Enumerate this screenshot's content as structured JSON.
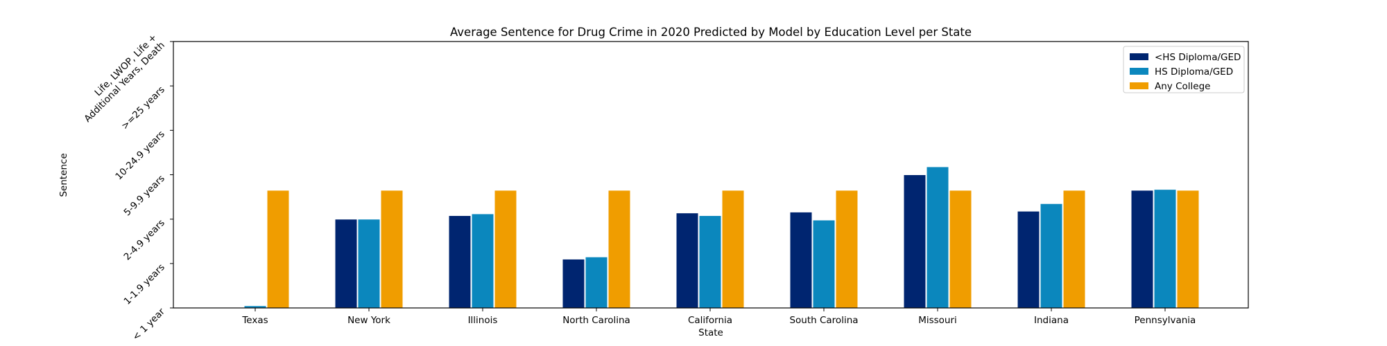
{
  "chart_data": {
    "type": "bar",
    "title": "Average Sentence for Drug Crime in 2020 Predicted by Model by Education Level per State",
    "xlabel": "State",
    "ylabel": "Sentence",
    "categories": [
      "Texas",
      "New York",
      "Illinois",
      "North Carolina",
      "California",
      "South Carolina",
      "Missouri",
      "Indiana",
      "Pennsylvania"
    ],
    "y_ticks": [
      "< 1 year",
      "1-1.9 years",
      "2-4.9 years",
      "5-9.9 years",
      "10-24.9 years",
      ">=25 years",
      "Life, LWOP, Life +\nAdditional Years, Death"
    ],
    "ylim": [
      0,
      6
    ],
    "grid": false,
    "legend_position": "top-right",
    "series": [
      {
        "name": "<HS Diploma/GED",
        "color": "#002570",
        "values": [
          0.01,
          2.0,
          2.08,
          1.1,
          2.14,
          2.16,
          3.0,
          2.18,
          2.65
        ]
      },
      {
        "name": "HS Diploma/GED",
        "color": "#0b87bd",
        "values": [
          0.05,
          2.0,
          2.12,
          1.15,
          2.08,
          1.98,
          3.18,
          2.35,
          2.67
        ]
      },
      {
        "name": "Any College",
        "color": "#f09d00",
        "values": [
          2.65,
          2.65,
          2.65,
          2.65,
          2.65,
          2.65,
          2.65,
          2.65,
          2.65
        ]
      }
    ]
  }
}
